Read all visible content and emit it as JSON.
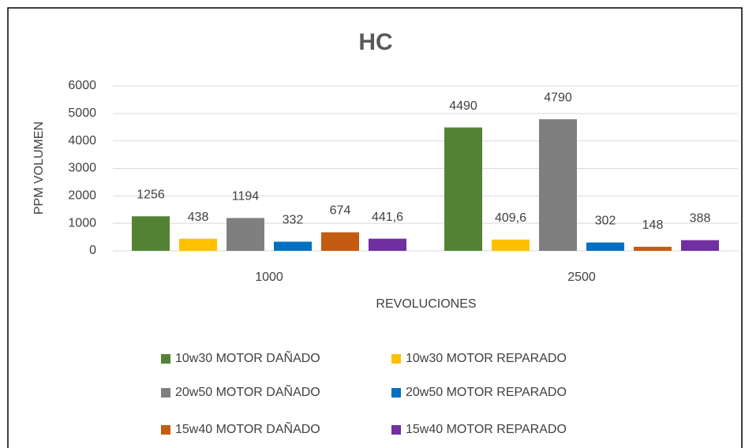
{
  "chart_data": {
    "type": "bar",
    "title": "HC",
    "x_label": "REVOLUCIONES",
    "y_label": "PPM VOLUMEN",
    "categories": [
      "1000",
      "2500"
    ],
    "series": [
      {
        "name": "10w30 MOTOR DAÑADO",
        "color": "#548235",
        "values": [
          1256,
          4490
        ]
      },
      {
        "name": "10w30 MOTOR REPARADO",
        "color": "#ffc000",
        "values": [
          438,
          409.6
        ],
        "value_labels": [
          "438",
          "409,6"
        ]
      },
      {
        "name": "20w50 MOTOR DAÑADO",
        "color": "#7f7f7f",
        "values": [
          1194,
          4790
        ]
      },
      {
        "name": "20w50 MOTOR REPARADO",
        "color": "#0070c0",
        "values": [
          332,
          302
        ]
      },
      {
        "name": "15w40 MOTOR DAÑADO",
        "color": "#c55a11",
        "values": [
          674,
          148
        ]
      },
      {
        "name": "15w40 MOTOR REPARADO",
        "color": "#7030a0",
        "values": [
          441.6,
          388
        ],
        "value_labels": [
          "441,6",
          "388"
        ]
      }
    ],
    "ylim": [
      0,
      6000
    ],
    "yticks": [
      0,
      1000,
      2000,
      3000,
      4000,
      5000,
      6000
    ],
    "grid": true,
    "legend": "bottom"
  }
}
